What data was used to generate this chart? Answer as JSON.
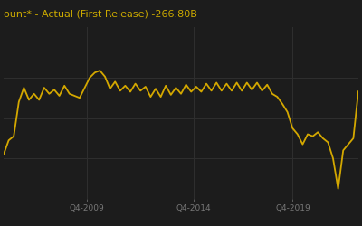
{
  "title": "ount* - Actual (First Release) -266.80B",
  "title_fontsize": 8.0,
  "line_color": "#d4a800",
  "bg_color": "#1c1c1c",
  "plot_bg_color": "#1c1c1c",
  "grid_color": "#2e2e2e",
  "text_color": "#ccaa00",
  "xlabel_color": "#777777",
  "x_tick_labels": [
    "Q4-2009",
    "Q4-2014",
    "Q4-2019"
  ],
  "x_tick_positions": [
    0.235,
    0.535,
    0.815
  ],
  "ylim_min": -800,
  "ylim_max": 50,
  "series": [
    -580,
    -510,
    -490,
    -320,
    -250,
    -310,
    -280,
    -310,
    -250,
    -280,
    -260,
    -290,
    -240,
    -280,
    -290,
    -300,
    -250,
    -200,
    -175,
    -165,
    -195,
    -255,
    -220,
    -265,
    -240,
    -270,
    -230,
    -265,
    -245,
    -295,
    -255,
    -295,
    -240,
    -285,
    -250,
    -280,
    -235,
    -270,
    -245,
    -270,
    -230,
    -265,
    -225,
    -265,
    -230,
    -265,
    -225,
    -265,
    -225,
    -260,
    -225,
    -265,
    -235,
    -280,
    -295,
    -330,
    -370,
    -450,
    -480,
    -530,
    -480,
    -490,
    -470,
    -500,
    -520,
    -600,
    -750,
    -560,
    -530,
    -500,
    -267
  ]
}
